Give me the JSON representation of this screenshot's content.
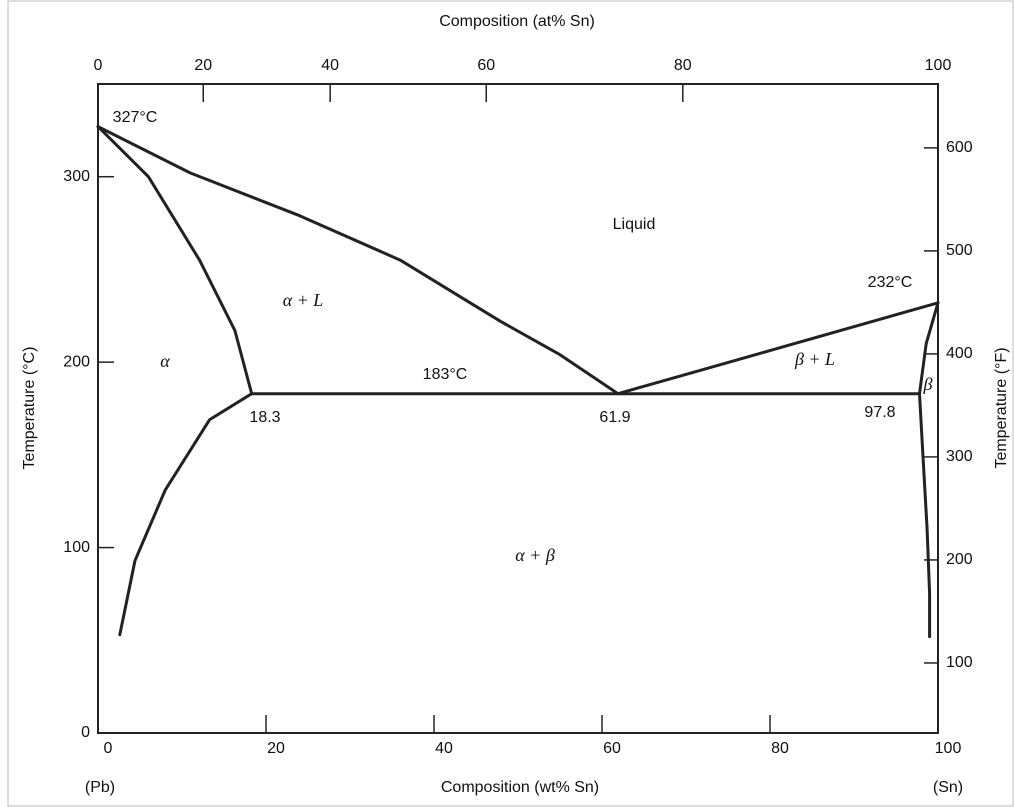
{
  "chart_data": {
    "type": "phase-diagram",
    "x_label": "Composition (wt% Sn)",
    "x2_label": "Composition (at% Sn)",
    "y_label": "Temperature (°C)",
    "y2_label": "Temperature (°F)",
    "xlim": [
      0,
      100
    ],
    "xticks": [
      0,
      20,
      40,
      60,
      80,
      100
    ],
    "x2lim": [
      0,
      100
    ],
    "x2ticks": [
      0,
      20,
      40,
      60,
      80,
      100
    ],
    "ylim": [
      0,
      350
    ],
    "yticks": [
      0,
      100,
      200,
      300
    ],
    "y2lim": [
      32,
      662
    ],
    "y2ticks": [
      100,
      200,
      300,
      400,
      500,
      600
    ],
    "end_labels": [
      "(Pb)",
      "(Sn)"
    ],
    "line_color": "#222222",
    "boundaries": [
      {
        "x": [
          0,
          11,
          24,
          36,
          47.9,
          55,
          61.9
        ],
        "y": [
          327,
          302,
          279,
          255,
          222,
          204,
          183
        ]
      },
      {
        "x": [
          61.9,
          100
        ],
        "y": [
          183,
          232
        ]
      },
      {
        "x": [
          0,
          6,
          12.1,
          16.3,
          18.3
        ],
        "y": [
          327,
          300,
          255,
          217,
          183
        ]
      },
      {
        "x": [
          18.3,
          13.3,
          8,
          4.4,
          2.6
        ],
        "y": [
          183,
          169,
          131,
          93,
          53
        ]
      },
      {
        "x": [
          18.3,
          97.8
        ],
        "y": [
          183,
          183
        ]
      },
      {
        "x": [
          100,
          98.6,
          97.8
        ],
        "y": [
          232,
          210,
          183
        ]
      },
      {
        "x": [
          97.8,
          98.2,
          98.7,
          99,
          99
        ],
        "y": [
          183,
          150,
          110,
          75,
          52
        ]
      }
    ],
    "annotations": [
      "327°C",
      "Liquid",
      "α + L",
      "α",
      "183°C",
      "18.3",
      "61.9",
      "97.8",
      "β + L",
      "232°C",
      "β",
      "α + β"
    ]
  }
}
